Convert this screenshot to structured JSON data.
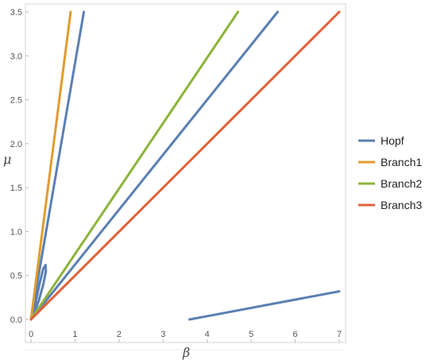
{
  "chart_data": {
    "type": "line",
    "title": "",
    "xlabel": "β",
    "ylabel": "μ",
    "xlim": [
      0,
      7
    ],
    "ylim": [
      0,
      3.5
    ],
    "x_ticks": [
      0,
      1,
      2,
      3,
      4,
      5,
      6,
      7
    ],
    "y_ticks": [
      0.0,
      0.5,
      1.0,
      1.5,
      2.0,
      2.5,
      3.0,
      3.5
    ],
    "y_tick_labels": [
      "0.0",
      "0.5",
      "1.0",
      "1.5",
      "2.0",
      "2.5",
      "3.0",
      "3.5"
    ],
    "x_tick_labels": [
      "0",
      "1",
      "2",
      "3",
      "4",
      "5",
      "6",
      "7"
    ],
    "grid": false,
    "legend_position": "right",
    "series": [
      {
        "name": "Hopf",
        "color": "#5B7FB2",
        "segments": [
          [
            [
              0.0,
              0.0
            ],
            [
              1.2,
              3.5
            ]
          ],
          [
            [
              0.0,
              0.0
            ],
            [
              5.6,
              3.5
            ]
          ],
          [
            [
              0.02,
              0.02
            ],
            [
              0.1,
              0.18
            ],
            [
              0.2,
              0.42
            ],
            [
              0.28,
              0.58
            ],
            [
              0.33,
              0.62
            ],
            [
              0.34,
              0.55
            ],
            [
              0.28,
              0.4
            ],
            [
              0.18,
              0.22
            ],
            [
              0.08,
              0.08
            ],
            [
              0.02,
              0.02
            ]
          ],
          [
            [
              3.6,
              0.0
            ],
            [
              7.0,
              0.32
            ]
          ]
        ]
      },
      {
        "name": "Branch1",
        "color": "#E09C2E",
        "segments": [
          [
            [
              0.0,
              0.0
            ],
            [
              0.9,
              3.5
            ]
          ]
        ]
      },
      {
        "name": "Branch2",
        "color": "#8DB33A",
        "segments": [
          [
            [
              0.0,
              0.0
            ],
            [
              4.7,
              3.5
            ]
          ]
        ]
      },
      {
        "name": "Branch3",
        "color": "#E0613A",
        "segments": [
          [
            [
              0.0,
              0.0
            ],
            [
              7.0,
              3.5
            ]
          ]
        ]
      }
    ]
  }
}
